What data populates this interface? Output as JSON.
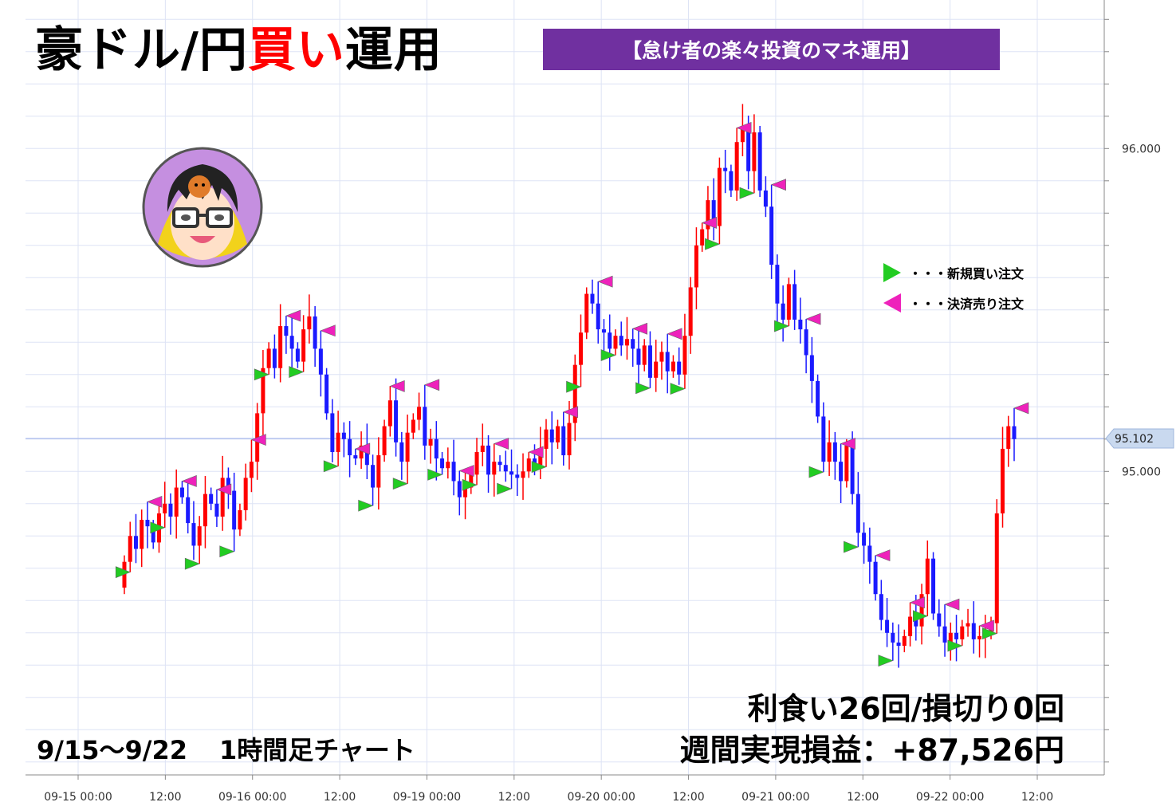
{
  "header": {
    "title_pre": "豪ドル/円",
    "title_red": "買い",
    "title_post": "運用",
    "banner": "【怠け者の楽々投資のマネ運用】"
  },
  "stats": {
    "line1": "利食い26回/損切り0回",
    "line2": "週間実現損益：+87,526円"
  },
  "period": {
    "range": "9/15～9/22",
    "timeframe": "1時間足チャート"
  },
  "legend": {
    "buy": "・・・新規買い注文",
    "sell": "・・・決済売り注文"
  },
  "colors": {
    "bull": "#ff0000",
    "bear": "#1a1aff",
    "buy_marker": "#22cc22",
    "sell_marker": "#ee22bb",
    "grid": "#dde3f5",
    "banner": "#7030a0"
  },
  "chart_data": {
    "type": "candlestick",
    "timeframe": "1h",
    "ylim": [
      94.06,
      96.46
    ],
    "y_ticks": [
      "96.000",
      "95.000"
    ],
    "current_price": "95.102",
    "x_ticks": [
      "09-15 00:00",
      "12:00",
      "09-16 00:00",
      "12:00",
      "09-19 00:00",
      "12:00",
      "09-20 00:00",
      "12:00",
      "09-21 00:00",
      "12:00",
      "09-22 00:00",
      "12:00"
    ],
    "closes": [
      94.72,
      94.8,
      94.76,
      94.85,
      94.83,
      94.78,
      94.87,
      94.9,
      94.86,
      94.95,
      94.92,
      94.84,
      94.77,
      94.83,
      94.93,
      94.9,
      94.86,
      94.98,
      94.94,
      94.82,
      94.88,
      94.98,
      95.03,
      95.18,
      95.32,
      95.38,
      95.32,
      95.45,
      95.42,
      95.38,
      95.34,
      95.44,
      95.48,
      95.38,
      95.3,
      95.18,
      95.06,
      95.12,
      95.1,
      95.05,
      95.04,
      95.08,
      95.02,
      94.95,
      95.05,
      95.14,
      95.22,
      95.09,
      95.03,
      95.12,
      95.16,
      95.2,
      95.08,
      95.1,
      95.04,
      95.01,
      95.03,
      94.97,
      94.92,
      94.95,
      94.99,
      95.06,
      95.08,
      94.99,
      95.03,
      95.02,
      95.0,
      94.99,
      94.98,
      95.0,
      95.04,
      95.02,
      95.07,
      95.13,
      95.09,
      95.14,
      95.05,
      95.15,
      95.33,
      95.43,
      95.55,
      95.52,
      95.44,
      95.43,
      95.38,
      95.42,
      95.39,
      95.41,
      95.38,
      95.33,
      95.39,
      95.29,
      95.34,
      95.37,
      95.31,
      95.34,
      95.3,
      95.42,
      95.57,
      95.7,
      95.75,
      95.84,
      95.76,
      95.94,
      95.93,
      95.87,
      96.02,
      96.07,
      95.93,
      96.05,
      95.87,
      95.82,
      95.64,
      95.52,
      95.47,
      95.58,
      95.47,
      95.44,
      95.36,
      95.28,
      95.17,
      95.03,
      95.09,
      95.03,
      94.97,
      95.08,
      94.93,
      94.81,
      94.77,
      94.72,
      94.62,
      94.54,
      94.5,
      94.47,
      94.46,
      94.49,
      94.55,
      94.52,
      94.62,
      94.73,
      94.56,
      94.52,
      94.47,
      94.5,
      94.48,
      94.52,
      94.53,
      94.48,
      94.49,
      94.5,
      94.53,
      94.87,
      95.07,
      95.14,
      95.1
    ],
    "buy_markers": 26,
    "sell_markers": 26
  }
}
